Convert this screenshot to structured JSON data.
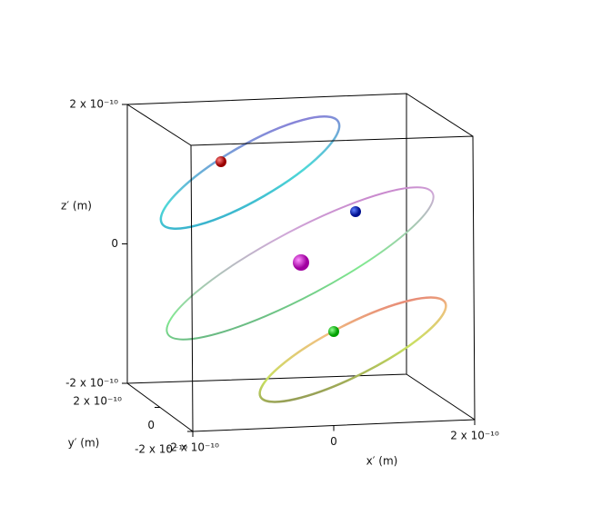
{
  "chart_data": {
    "type": "orbits3d",
    "xlabel": "x′ (m)",
    "ylabel": "y′ (m)",
    "zlabel": "z′ (m)",
    "xlim": [
      -2e-10,
      2e-10
    ],
    "ylim": [
      -2e-10,
      2e-10
    ],
    "zlim": [
      -2e-10,
      2e-10
    ],
    "xticks": [
      {
        "value": -2e-10,
        "label": "-2 x 10⁻¹⁰"
      },
      0,
      {
        "value": 2e-10,
        "label": "2 x 10⁻¹⁰"
      }
    ],
    "yticks": [
      {
        "value": -2e-10,
        "label": "-2 x 10⁻¹⁰"
      },
      0,
      {
        "value": 2e-10,
        "label": "2 x 10⁻¹⁰"
      }
    ],
    "zticks": [
      {
        "value": -2e-10,
        "label": "-2 x 10⁻¹⁰"
      },
      0,
      {
        "value": 2e-10,
        "label": "2 x 10⁻¹⁰"
      }
    ]
  }
}
